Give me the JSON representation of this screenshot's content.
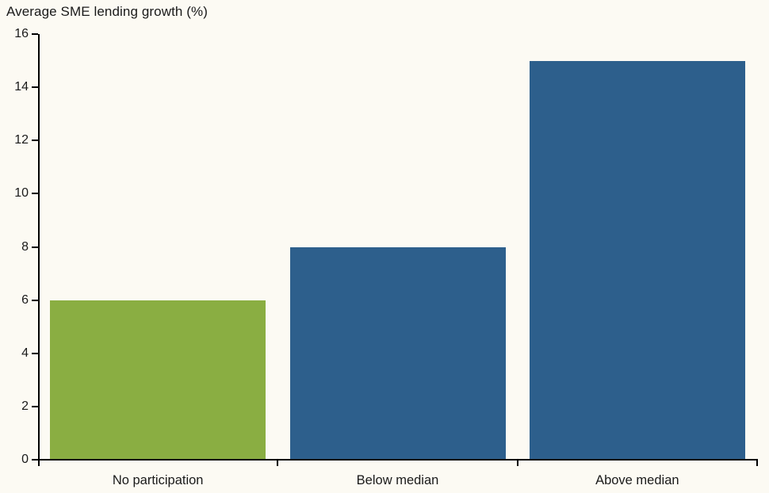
{
  "chart_data": {
    "type": "bar",
    "title": "Average SME lending growth (%)",
    "categories": [
      "No participation",
      "Below median",
      "Above median"
    ],
    "values": [
      6,
      8,
      15
    ],
    "bar_colors": [
      "#8AAE42",
      "#2D5F8C",
      "#2D5F8C"
    ],
    "xlabel": "",
    "ylabel": "",
    "ylim": [
      0,
      16
    ],
    "ytick_step": 2,
    "ytick_labels": [
      "0",
      "2",
      "4",
      "6",
      "8",
      "10",
      "12",
      "14",
      "16"
    ],
    "grid": false,
    "legend_position": "none",
    "background_color": "#FCFAF3",
    "axis_color": "#000000",
    "text_color": "#1A1A1A"
  }
}
